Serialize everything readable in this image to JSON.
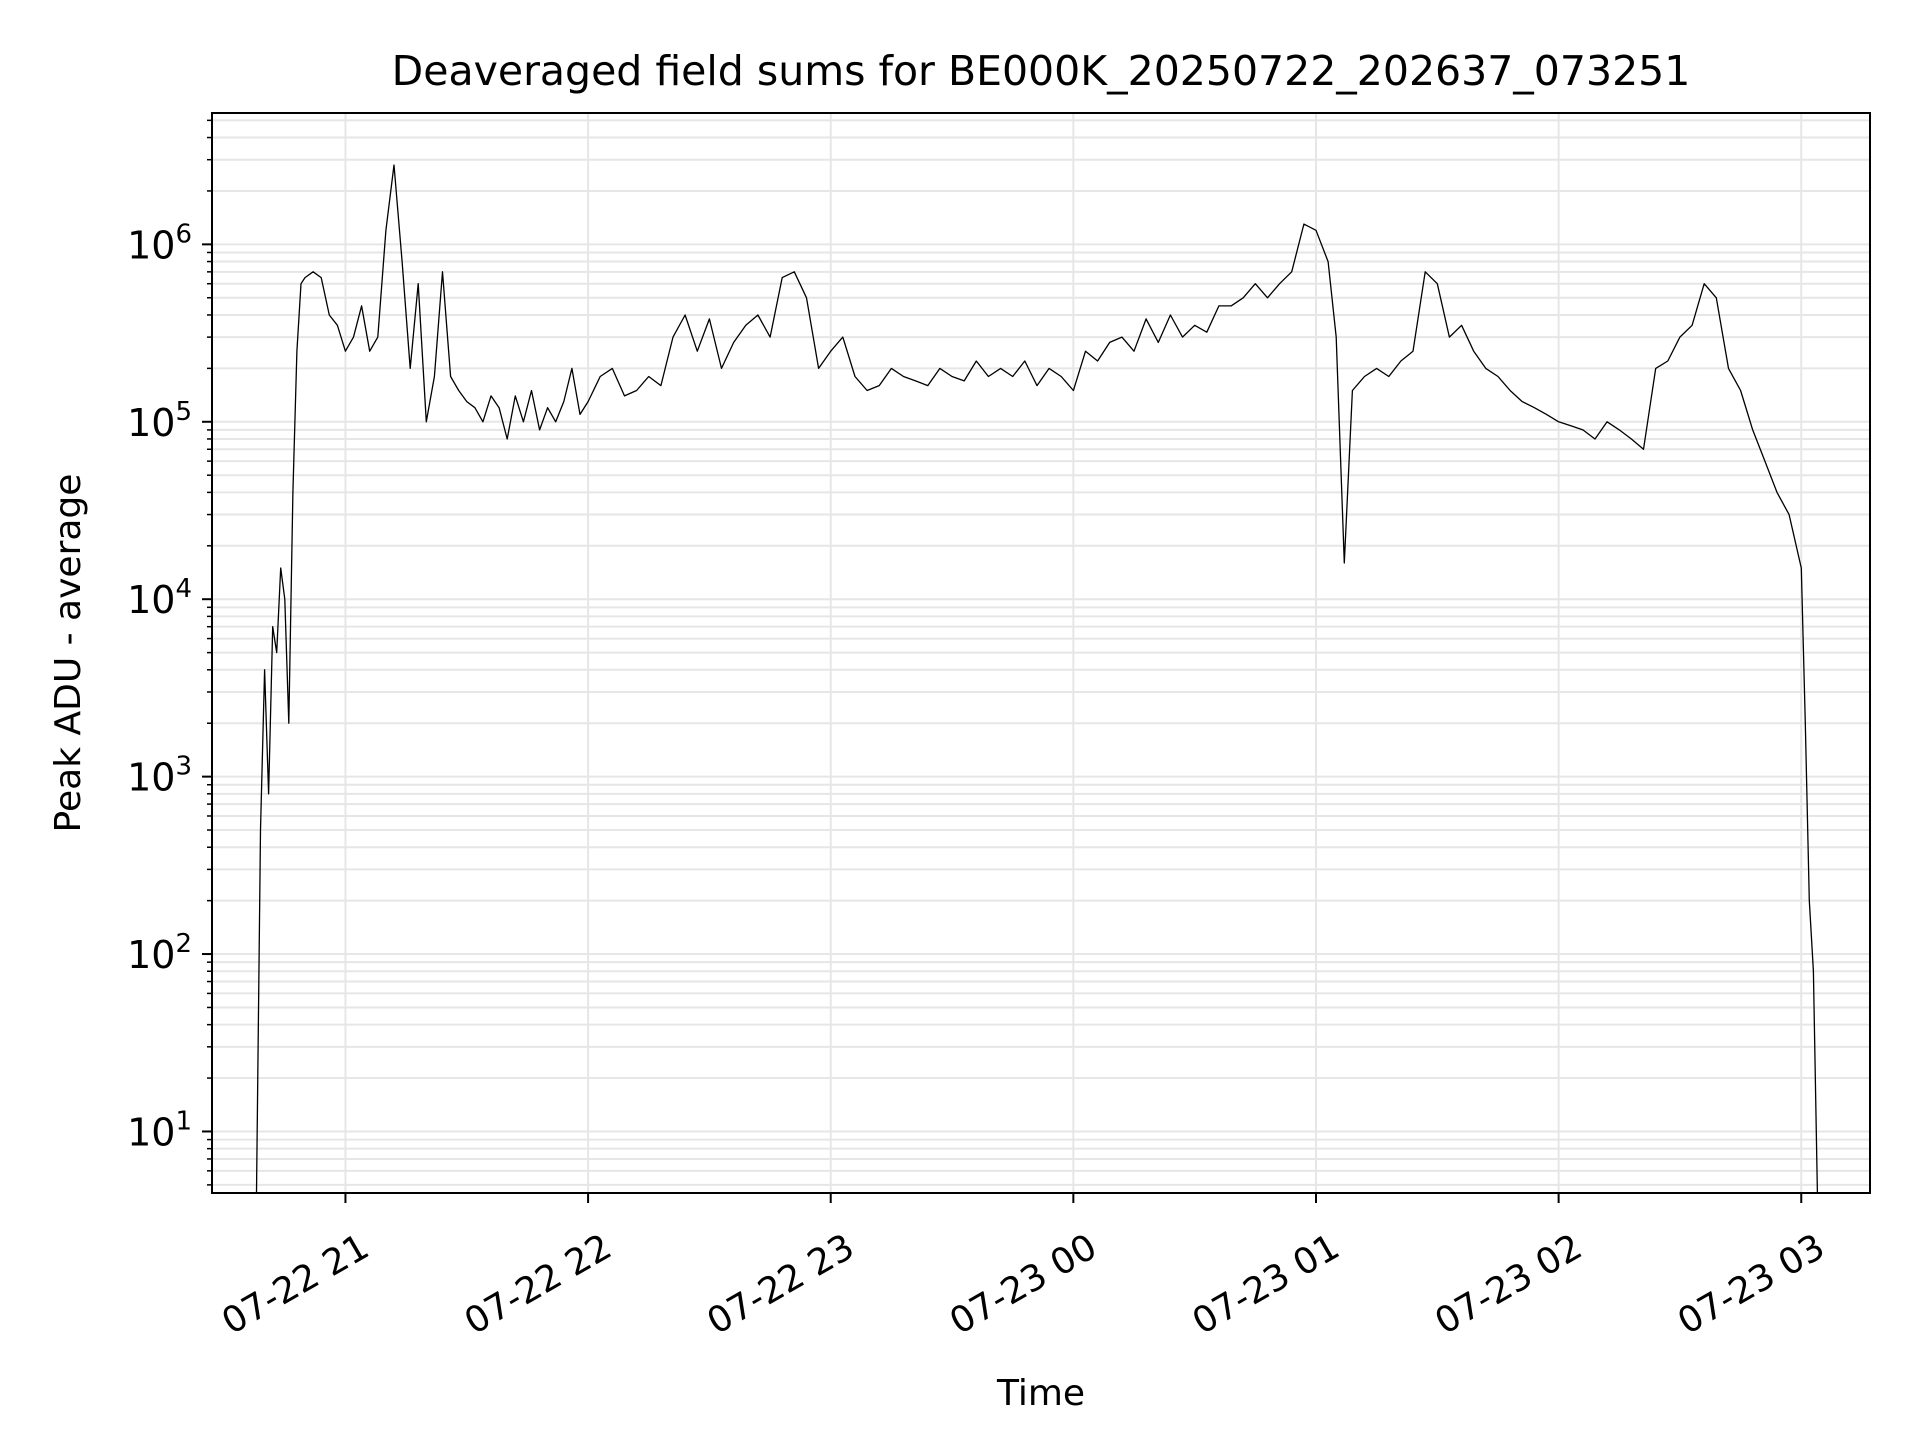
{
  "chart_data": {
    "type": "line",
    "title": "Deaveraged field sums for BE000K_20250722_202637_073251",
    "xlabel": "Time",
    "ylabel": "Peak ADU - average",
    "yscale": "log",
    "xlim": [
      "2025-07-22 20:27",
      "2025-07-23 03:17"
    ],
    "ylim": [
      4.5,
      5500000
    ],
    "grid": true,
    "x_tick_labels": [
      "07-22 21",
      "07-22 22",
      "07-22 23",
      "07-23 00",
      "07-23 01",
      "07-23 02",
      "07-23 03"
    ],
    "y_tick_values": [
      10,
      100,
      1000,
      10000,
      100000,
      1000000
    ],
    "y_tick_exponents": [
      "1",
      "2",
      "3",
      "4",
      "5",
      "6"
    ],
    "line_color": "#000000",
    "series": [
      {
        "x": [
          "2025-07-22 20:38",
          "2025-07-22 20:39",
          "2025-07-22 20:40",
          "2025-07-22 20:41",
          "2025-07-22 20:42",
          "2025-07-22 20:43",
          "2025-07-22 20:44",
          "2025-07-22 20:45",
          "2025-07-22 20:46",
          "2025-07-22 20:47",
          "2025-07-22 20:48",
          "2025-07-22 20:49",
          "2025-07-22 20:50",
          "2025-07-22 20:52",
          "2025-07-22 20:54",
          "2025-07-22 20:56",
          "2025-07-22 20:58",
          "2025-07-22 21:00",
          "2025-07-22 21:02",
          "2025-07-22 21:04",
          "2025-07-22 21:06",
          "2025-07-22 21:08",
          "2025-07-22 21:10",
          "2025-07-22 21:12",
          "2025-07-22 21:14",
          "2025-07-22 21:16",
          "2025-07-22 21:18",
          "2025-07-22 21:20",
          "2025-07-22 21:22",
          "2025-07-22 21:24",
          "2025-07-22 21:26",
          "2025-07-22 21:28",
          "2025-07-22 21:30",
          "2025-07-22 21:32",
          "2025-07-22 21:34",
          "2025-07-22 21:36",
          "2025-07-22 21:38",
          "2025-07-22 21:40",
          "2025-07-22 21:42",
          "2025-07-22 21:44",
          "2025-07-22 21:46",
          "2025-07-22 21:48",
          "2025-07-22 21:50",
          "2025-07-22 21:52",
          "2025-07-22 21:54",
          "2025-07-22 21:56",
          "2025-07-22 21:58",
          "2025-07-22 22:00",
          "2025-07-22 22:03",
          "2025-07-22 22:06",
          "2025-07-22 22:09",
          "2025-07-22 22:12",
          "2025-07-22 22:15",
          "2025-07-22 22:18",
          "2025-07-22 22:21",
          "2025-07-22 22:24",
          "2025-07-22 22:27",
          "2025-07-22 22:30",
          "2025-07-22 22:33",
          "2025-07-22 22:36",
          "2025-07-22 22:39",
          "2025-07-22 22:42",
          "2025-07-22 22:45",
          "2025-07-22 22:48",
          "2025-07-22 22:51",
          "2025-07-22 22:54",
          "2025-07-22 22:57",
          "2025-07-22 23:00",
          "2025-07-22 23:03",
          "2025-07-22 23:06",
          "2025-07-22 23:09",
          "2025-07-22 23:12",
          "2025-07-22 23:15",
          "2025-07-22 23:18",
          "2025-07-22 23:21",
          "2025-07-22 23:24",
          "2025-07-22 23:27",
          "2025-07-22 23:30",
          "2025-07-22 23:33",
          "2025-07-22 23:36",
          "2025-07-22 23:39",
          "2025-07-22 23:42",
          "2025-07-22 23:45",
          "2025-07-22 23:48",
          "2025-07-22 23:51",
          "2025-07-22 23:54",
          "2025-07-22 23:57",
          "2025-07-23 00:00",
          "2025-07-23 00:03",
          "2025-07-23 00:06",
          "2025-07-23 00:09",
          "2025-07-23 00:12",
          "2025-07-23 00:15",
          "2025-07-23 00:18",
          "2025-07-23 00:21",
          "2025-07-23 00:24",
          "2025-07-23 00:27",
          "2025-07-23 00:30",
          "2025-07-23 00:33",
          "2025-07-23 00:36",
          "2025-07-23 00:39",
          "2025-07-23 00:42",
          "2025-07-23 00:45",
          "2025-07-23 00:48",
          "2025-07-23 00:51",
          "2025-07-23 00:54",
          "2025-07-23 00:57",
          "2025-07-23 01:00",
          "2025-07-23 01:03",
          "2025-07-23 01:05",
          "2025-07-23 01:07",
          "2025-07-23 01:09",
          "2025-07-23 01:12",
          "2025-07-23 01:15",
          "2025-07-23 01:18",
          "2025-07-23 01:21",
          "2025-07-23 01:24",
          "2025-07-23 01:27",
          "2025-07-23 01:30",
          "2025-07-23 01:33",
          "2025-07-23 01:36",
          "2025-07-23 01:39",
          "2025-07-23 01:42",
          "2025-07-23 01:45",
          "2025-07-23 01:48",
          "2025-07-23 01:51",
          "2025-07-23 01:54",
          "2025-07-23 01:57",
          "2025-07-23 02:00",
          "2025-07-23 02:03",
          "2025-07-23 02:06",
          "2025-07-23 02:09",
          "2025-07-23 02:12",
          "2025-07-23 02:15",
          "2025-07-23 02:18",
          "2025-07-23 02:21",
          "2025-07-23 02:24",
          "2025-07-23 02:27",
          "2025-07-23 02:30",
          "2025-07-23 02:33",
          "2025-07-23 02:36",
          "2025-07-23 02:39",
          "2025-07-23 02:42",
          "2025-07-23 02:45",
          "2025-07-23 02:48",
          "2025-07-23 02:51",
          "2025-07-23 02:54",
          "2025-07-23 02:57",
          "2025-07-23 03:00",
          "2025-07-23 03:01",
          "2025-07-23 03:02",
          "2025-07-23 03:03",
          "2025-07-23 03:04"
        ],
        "y": [
          4.5,
          500,
          4000,
          800,
          7000,
          5000,
          15000,
          10000,
          2000,
          40000,
          250000,
          600000,
          650000,
          700000,
          650000,
          400000,
          350000,
          250000,
          300000,
          450000,
          250000,
          300000,
          1200000,
          2800000,
          800000,
          200000,
          600000,
          100000,
          180000,
          700000,
          180000,
          150000,
          130000,
          120000,
          100000,
          140000,
          120000,
          80000,
          140000,
          100000,
          150000,
          90000,
          120000,
          100000,
          130000,
          200000,
          110000,
          130000,
          180000,
          200000,
          140000,
          150000,
          180000,
          160000,
          300000,
          400000,
          250000,
          380000,
          200000,
          280000,
          350000,
          400000,
          300000,
          650000,
          700000,
          500000,
          200000,
          250000,
          300000,
          180000,
          150000,
          160000,
          200000,
          180000,
          170000,
          160000,
          200000,
          180000,
          170000,
          220000,
          180000,
          200000,
          180000,
          220000,
          160000,
          200000,
          180000,
          150000,
          250000,
          220000,
          280000,
          300000,
          250000,
          380000,
          280000,
          400000,
          300000,
          350000,
          320000,
          450000,
          450000,
          500000,
          600000,
          500000,
          600000,
          700000,
          1300000,
          1200000,
          800000,
          300000,
          16000,
          150000,
          180000,
          200000,
          180000,
          220000,
          250000,
          700000,
          600000,
          300000,
          350000,
          250000,
          200000,
          180000,
          150000,
          130000,
          120000,
          110000,
          100000,
          95000,
          90000,
          80000,
          100000,
          90000,
          80000,
          70000,
          200000,
          220000,
          300000,
          350000,
          600000,
          500000,
          200000,
          150000,
          90000,
          60000,
          40000,
          30000,
          15000,
          2000,
          200,
          80,
          4.5
        ]
      }
    ]
  }
}
